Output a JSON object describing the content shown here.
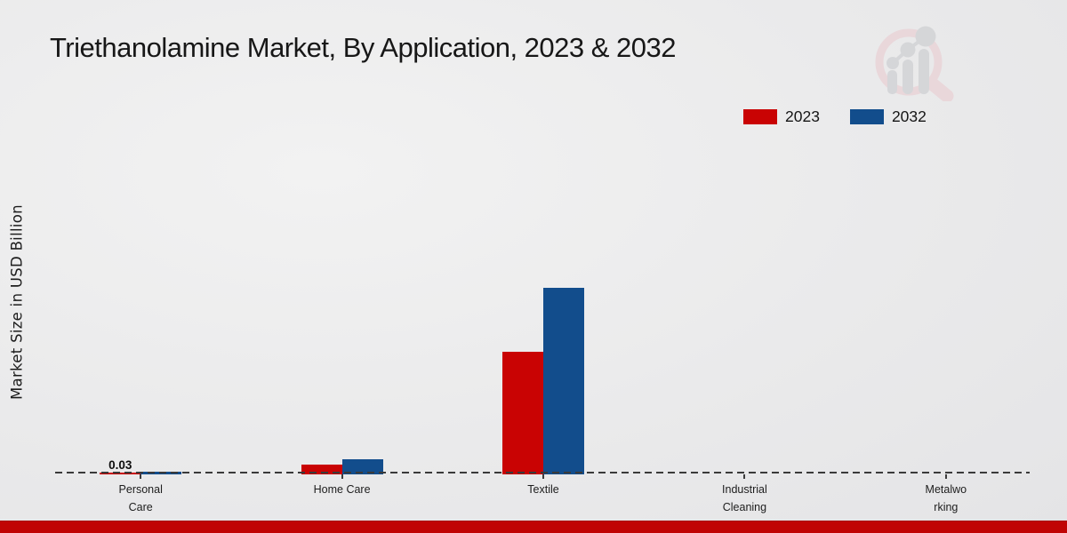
{
  "title": "Triethanolamine Market, By Application, 2023 & 2032",
  "y_axis_label": "Market Size in USD Billion",
  "legend": [
    {
      "label": "2023",
      "color": "#c90303"
    },
    {
      "label": "2032",
      "color": "#124d8c"
    }
  ],
  "colors": {
    "series_2023": "#c90303",
    "series_2032": "#124d8c",
    "bottom_accent": "#c00404",
    "baseline_dash": "#3a3a3a",
    "background": "#eaeaeb",
    "watermark_pink": "#e9d4d8",
    "watermark_gray": "#d2d3d6"
  },
  "chart_data": {
    "type": "bar",
    "title": "Triethanolamine Market, By Application, 2023 & 2032",
    "xlabel": "",
    "ylabel": "Market Size in USD Billion",
    "categories": [
      "Personal Care",
      "Home Care",
      "Textile",
      "Industrial Cleaning",
      "Metalworking"
    ],
    "category_label_lines": [
      [
        "Personal",
        "Care"
      ],
      [
        "Home Care"
      ],
      [
        "Textile"
      ],
      [
        "Industrial",
        "Cleaning"
      ],
      [
        "Metalwo",
        "rking"
      ]
    ],
    "series": [
      {
        "name": "2023",
        "color": "#c90303",
        "values": [
          0.03,
          0.16,
          2.07,
          0,
          0
        ]
      },
      {
        "name": "2032",
        "color": "#124d8c",
        "values": [
          0.04,
          0.25,
          3.15,
          0,
          0
        ]
      }
    ],
    "data_labels": [
      {
        "category": "Personal Care",
        "series": "2023",
        "text": "0.03"
      }
    ],
    "ylim": [
      0,
      3.5
    ],
    "grid": false,
    "y_axis_ticks_visible": false,
    "legend_position": "top-right",
    "baseline_style": "dashed"
  },
  "watermark": {
    "name": "market-research-future-logo"
  }
}
